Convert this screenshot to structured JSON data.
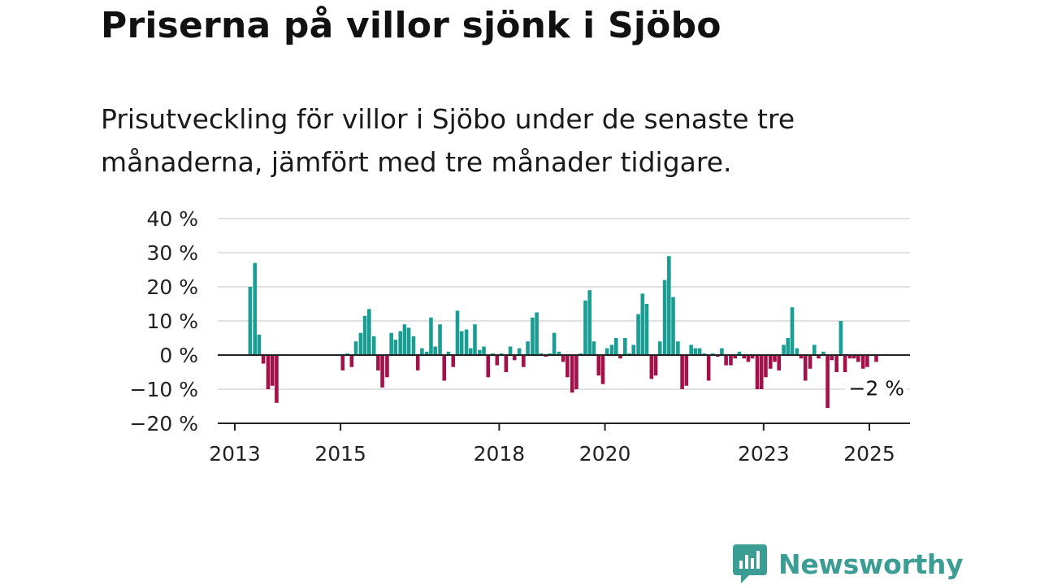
{
  "title": "Priserna på villor sjönk i Sjöbo",
  "subtitle": "Prisutveckling för villor i Sjöbo under de senaste tre månaderna, jämfört med tre månader tidigare.",
  "brand": "Newsworthy",
  "colors": {
    "positive": "#1a9e94",
    "negative": "#a3114b",
    "brand": "#3b9d93",
    "grid": "#d7d7d7",
    "axis": "#222222"
  },
  "chart_data": {
    "type": "bar",
    "title": "",
    "xlabel": "",
    "ylabel": "",
    "ylim": [
      -20,
      40
    ],
    "y_ticks": [
      40,
      30,
      20,
      10,
      0,
      -10,
      -20
    ],
    "y_tick_labels": [
      "40 %",
      "30 %",
      "20 %",
      "10 %",
      "0 %",
      "−10 %",
      "−20 %"
    ],
    "x_range": [
      2012.8,
      2025.8
    ],
    "x_ticks": [
      2013,
      2015,
      2018,
      2020,
      2023,
      2025
    ],
    "x_tick_labels": [
      "2013",
      "2015",
      "2018",
      "2020",
      "2023",
      "2025"
    ],
    "end_label": "−2 %",
    "end_value": -2,
    "grid": true,
    "x": [
      2013.29,
      2013.38,
      2013.46,
      2013.54,
      2013.63,
      2013.71,
      2013.79,
      2015.04,
      2015.13,
      2015.21,
      2015.29,
      2015.38,
      2015.46,
      2015.54,
      2015.63,
      2015.71,
      2015.79,
      2015.88,
      2015.96,
      2016.04,
      2016.13,
      2016.21,
      2016.29,
      2016.38,
      2016.46,
      2016.54,
      2016.63,
      2016.71,
      2016.79,
      2016.88,
      2016.96,
      2017.04,
      2017.13,
      2017.21,
      2017.29,
      2017.38,
      2017.46,
      2017.54,
      2017.63,
      2017.71,
      2017.79,
      2017.88,
      2017.96,
      2018.04,
      2018.13,
      2018.21,
      2018.29,
      2018.38,
      2018.46,
      2018.54,
      2018.63,
      2018.71,
      2018.79,
      2018.88,
      2018.96,
      2019.04,
      2019.13,
      2019.21,
      2019.29,
      2019.38,
      2019.46,
      2019.54,
      2019.63,
      2019.71,
      2019.79,
      2019.88,
      2019.96,
      2020.04,
      2020.13,
      2020.21,
      2020.29,
      2020.38,
      2020.46,
      2020.54,
      2020.63,
      2020.71,
      2020.79,
      2020.88,
      2020.96,
      2021.04,
      2021.13,
      2021.21,
      2021.29,
      2021.38,
      2021.46,
      2021.54,
      2021.63,
      2021.71,
      2021.79,
      2021.88,
      2021.96,
      2022.04,
      2022.13,
      2022.21,
      2022.29,
      2022.38,
      2022.46,
      2022.54,
      2022.63,
      2022.71,
      2022.79,
      2022.88,
      2022.96,
      2023.04,
      2023.13,
      2023.21,
      2023.29,
      2023.38,
      2023.46,
      2023.54,
      2023.63,
      2023.71,
      2023.79,
      2023.88,
      2023.96,
      2024.04,
      2024.13,
      2024.21,
      2024.29,
      2024.38,
      2024.46,
      2024.54,
      2024.63,
      2024.71,
      2024.79,
      2024.88,
      2024.96,
      2025.13
    ],
    "values": [
      20,
      27,
      6,
      -2.5,
      -10,
      -9,
      -14,
      -4.5,
      0.5,
      -3.5,
      4,
      6.5,
      11.5,
      13.5,
      5.5,
      -4.5,
      -9.5,
      -6.5,
      6.5,
      4.5,
      7,
      9,
      8,
      5.5,
      -4.5,
      2,
      1,
      11,
      2.5,
      9,
      -7.5,
      1,
      -3.5,
      13,
      7,
      7.5,
      2,
      9,
      1.5,
      2.5,
      -6.5,
      0.5,
      -3,
      0.5,
      -5,
      2.5,
      -1.5,
      2,
      -3.5,
      4,
      11,
      12.5,
      0.5,
      -0.5,
      0.5,
      6.5,
      1,
      -2,
      -6.5,
      -11,
      -10,
      0.5,
      16,
      19,
      4,
      -6,
      -8.5,
      2,
      3,
      5,
      -1,
      5,
      0.5,
      3,
      12,
      18,
      15,
      -7,
      -6,
      4,
      22,
      29,
      17,
      4,
      -10,
      -9,
      3,
      2,
      2,
      0.5,
      -7.5,
      0.5,
      -0.5,
      2,
      -3,
      -3,
      -1,
      1,
      -1,
      -2,
      -1,
      -10,
      -10,
      -6.5,
      -4,
      -2,
      -4.5,
      3,
      5,
      14,
      2,
      -1,
      -7.5,
      -4,
      3,
      -1,
      1,
      -15.5,
      -1.5,
      -5,
      10,
      -5,
      -1,
      -1,
      -2,
      -4,
      -3.5,
      -2
    ]
  }
}
